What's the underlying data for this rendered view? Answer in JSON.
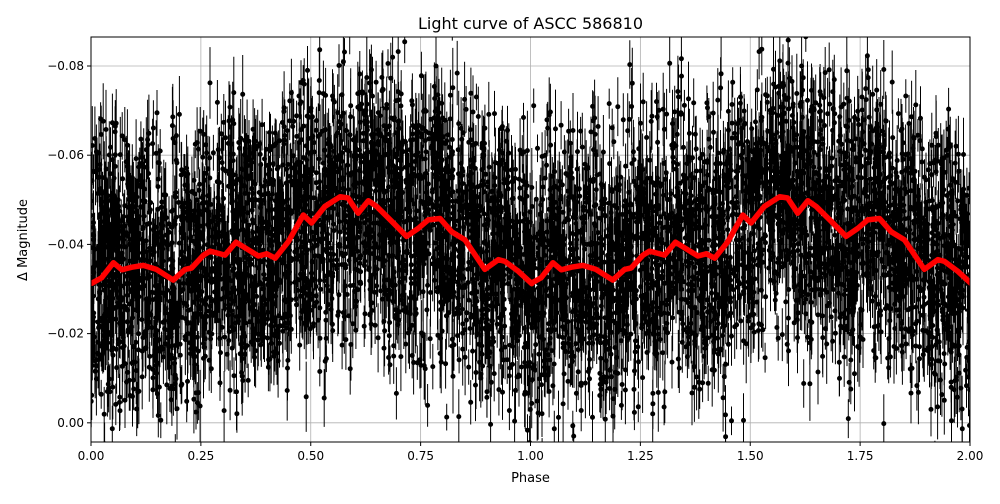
{
  "chart_data": {
    "type": "scatter",
    "title": "Light curve of ASCC 586810",
    "xlabel": "Phase",
    "ylabel": "Δ Magnitude",
    "xlim": [
      0,
      2
    ],
    "ylim": [
      0.0043,
      -0.0865
    ],
    "y_inverted": true,
    "grid": true,
    "xticks": [
      "0.00",
      "0.25",
      "0.50",
      "0.75",
      "1.00",
      "1.25",
      "1.50",
      "1.75",
      "2.00"
    ],
    "xtick_values": [
      0,
      0.25,
      0.5,
      0.75,
      1.0,
      1.25,
      1.5,
      1.75,
      2.0
    ],
    "yticks": [
      "−0.08",
      "−0.06",
      "−0.04",
      "−0.02",
      "0.00"
    ],
    "ytick_values": [
      -0.08,
      -0.06,
      -0.04,
      -0.02,
      0.0
    ],
    "colors": {
      "points": "#000000",
      "model": "#ff0000",
      "grid": "#b0b0b0"
    },
    "observations": {
      "style": "black dots with vertical error bars",
      "scatter_around_model": 0.015,
      "typical_error": 0.005
    },
    "model_curve": {
      "color": "#ff0000",
      "period_repeats": true,
      "phase": [
        0.002,
        0.024,
        0.051,
        0.07,
        0.093,
        0.119,
        0.149,
        0.187,
        0.214,
        0.229,
        0.256,
        0.271,
        0.305,
        0.33,
        0.358,
        0.381,
        0.4,
        0.419,
        0.449,
        0.483,
        0.502,
        0.532,
        0.567,
        0.585,
        0.608,
        0.631,
        0.65,
        0.688,
        0.718,
        0.745,
        0.767,
        0.794,
        0.821,
        0.851,
        0.896,
        0.927,
        0.942,
        0.972,
        1.003
      ],
      "magnitude": [
        -0.0313,
        -0.0325,
        -0.0359,
        -0.0343,
        -0.0349,
        -0.0353,
        -0.0344,
        -0.032,
        -0.0344,
        -0.0347,
        -0.0376,
        -0.0385,
        -0.0376,
        -0.0405,
        -0.0388,
        -0.0374,
        -0.0379,
        -0.0369,
        -0.0406,
        -0.0466,
        -0.0448,
        -0.0485,
        -0.0507,
        -0.0504,
        -0.047,
        -0.0498,
        -0.0485,
        -0.0448,
        -0.0418,
        -0.0436,
        -0.0455,
        -0.0458,
        -0.0428,
        -0.041,
        -0.0344,
        -0.0366,
        -0.0362,
        -0.034,
        -0.0312
      ]
    }
  }
}
